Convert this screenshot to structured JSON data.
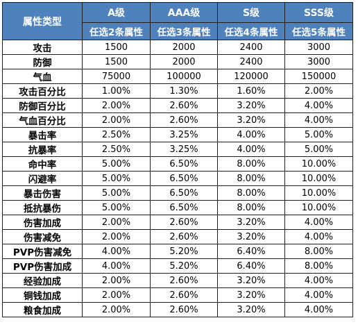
{
  "header": {
    "corner": "属性类型",
    "tiers": [
      {
        "name": "A级",
        "sub": "任选2条属性"
      },
      {
        "name": "AAA级",
        "sub": "任选3条属性"
      },
      {
        "name": "S级",
        "sub": "任选4条属性"
      },
      {
        "name": "SSS级",
        "sub": "任选5条属性"
      }
    ]
  },
  "rows": [
    {
      "attr": "攻击",
      "values": [
        "1500",
        "2000",
        "2400",
        "3000"
      ]
    },
    {
      "attr": "防御",
      "values": [
        "1500",
        "2000",
        "2400",
        "3000"
      ]
    },
    {
      "attr": "气血",
      "values": [
        "75000",
        "100000",
        "120000",
        "150000"
      ]
    },
    {
      "attr": "攻击百分比",
      "values": [
        "1.00%",
        "1.30%",
        "1.60%",
        "2.00%"
      ]
    },
    {
      "attr": "防御百分比",
      "values": [
        "2.00%",
        "2.60%",
        "3.20%",
        "4.00%"
      ]
    },
    {
      "attr": "气血百分比",
      "values": [
        "2.00%",
        "2.60%",
        "3.20%",
        "4.00%"
      ]
    },
    {
      "attr": "暴击率",
      "values": [
        "2.50%",
        "3.25%",
        "4.00%",
        "5.00%"
      ]
    },
    {
      "attr": "抗暴率",
      "values": [
        "2.50%",
        "3.25%",
        "4.00%",
        "5.00%"
      ]
    },
    {
      "attr": "命中率",
      "values": [
        "5.00%",
        "6.50%",
        "8.00%",
        "10.00%"
      ]
    },
    {
      "attr": "闪避率",
      "values": [
        "5.00%",
        "6.50%",
        "8.00%",
        "10.00%"
      ]
    },
    {
      "attr": "暴击伤害",
      "values": [
        "5.00%",
        "6.50%",
        "8.00%",
        "10.00%"
      ]
    },
    {
      "attr": "抵抗暴伤",
      "values": [
        "5.00%",
        "6.50%",
        "8.00%",
        "10.00%"
      ]
    },
    {
      "attr": "伤害加成",
      "values": [
        "2.00%",
        "2.60%",
        "3.20%",
        "4.00%"
      ]
    },
    {
      "attr": "伤害减免",
      "values": [
        "2.00%",
        "2.60%",
        "3.20%",
        "4.00%"
      ]
    },
    {
      "attr": "PVP伤害减免",
      "values": [
        "4.00%",
        "5.20%",
        "6.40%",
        "8.00%"
      ]
    },
    {
      "attr": "PVP伤害加成",
      "values": [
        "4.00%",
        "5.20%",
        "6.40%",
        "8.00%"
      ]
    },
    {
      "attr": "经验加成",
      "values": [
        "2.00%",
        "2.60%",
        "3.20%",
        "4.00%"
      ]
    },
    {
      "attr": "铜钱加成",
      "values": [
        "2.00%",
        "2.60%",
        "3.20%",
        "4.00%"
      ]
    },
    {
      "attr": "粮食加成",
      "values": [
        "2.00%",
        "2.60%",
        "3.20%",
        "4.00%"
      ]
    }
  ],
  "colors": {
    "header_bg": "#4f81bd",
    "header_text": "#ffffff",
    "border": "#1f1f1f"
  }
}
